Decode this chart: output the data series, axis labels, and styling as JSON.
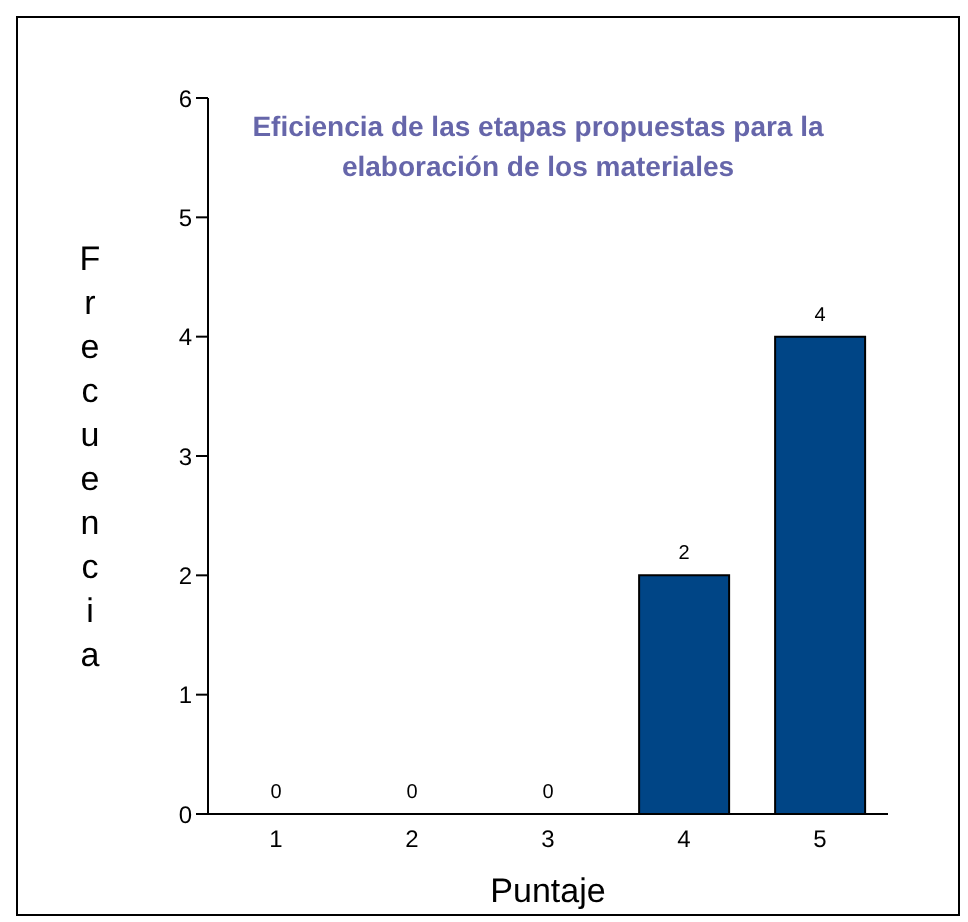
{
  "chart_data": {
    "type": "bar",
    "title": "Eficiencia de las etapas propuestas para la elaboración de los materiales",
    "xlabel": "Puntaje",
    "ylabel": "Frecuencia",
    "categories": [
      "1",
      "2",
      "3",
      "4",
      "5"
    ],
    "series": [
      {
        "color": "#004586",
        "values": [
          0,
          0,
          0,
          2,
          4
        ]
      }
    ],
    "ylim": [
      0,
      6
    ],
    "yticks": [
      0,
      1,
      2,
      3,
      4,
      5,
      6
    ],
    "data_labels": true
  }
}
